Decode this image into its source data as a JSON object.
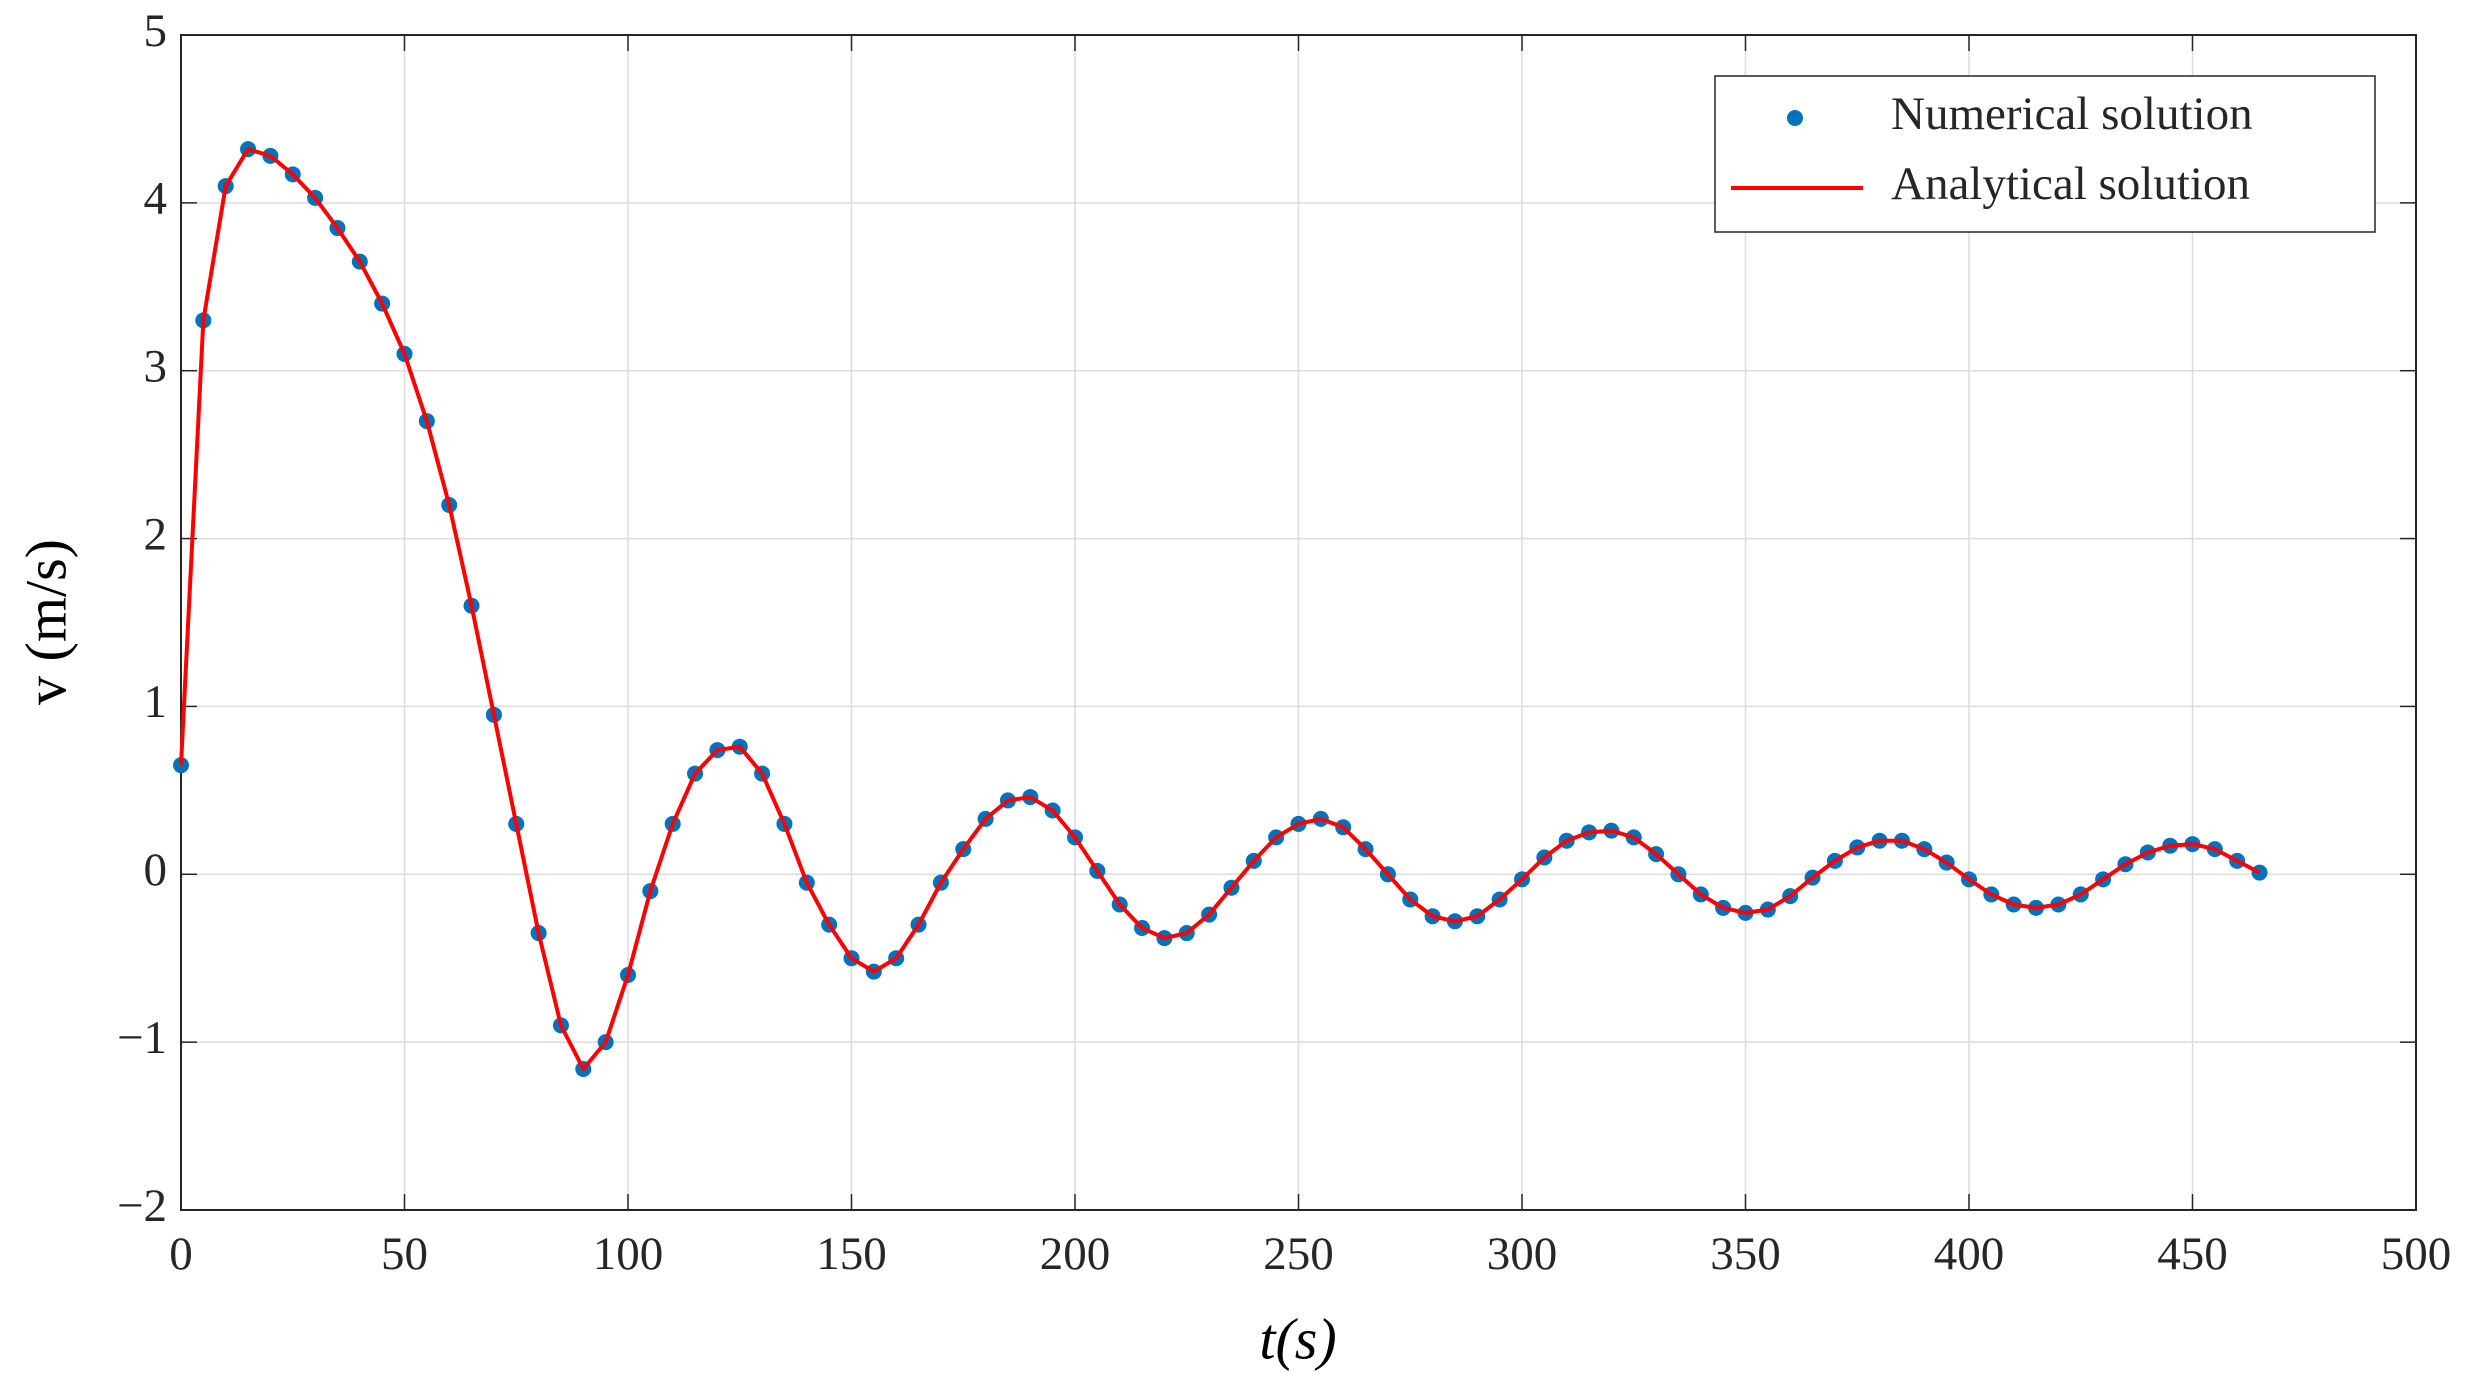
{
  "chart_data": {
    "type": "line",
    "xlabel": "t(s)",
    "ylabel": "v (m/s)",
    "x": [
      0,
      5,
      10,
      15,
      20,
      25,
      30,
      35,
      40,
      45,
      50,
      55,
      60,
      65,
      70,
      75,
      80,
      85,
      90,
      95,
      100,
      105,
      110,
      115,
      120,
      125,
      130,
      135,
      140,
      145,
      150,
      155,
      160,
      165,
      170,
      175,
      180,
      185,
      190,
      195,
      200,
      205,
      210,
      215,
      220,
      225,
      230,
      235,
      240,
      245,
      250,
      255,
      260,
      265,
      270,
      275,
      280,
      285,
      290,
      295,
      300,
      305,
      310,
      315,
      320,
      325,
      330,
      335,
      340,
      345,
      350,
      355,
      360,
      365,
      370,
      375,
      380,
      385,
      390,
      395,
      400,
      405,
      410,
      415,
      420,
      425,
      430,
      435,
      440,
      445,
      450,
      455,
      460,
      465
    ],
    "series": [
      {
        "name": "Numerical solution",
        "style": "markers",
        "color": "#0072bd",
        "values": [
          0.65,
          3.3,
          4.1,
          4.32,
          4.28,
          4.17,
          4.03,
          3.85,
          3.65,
          3.4,
          3.1,
          2.7,
          2.2,
          1.6,
          0.95,
          0.3,
          -0.35,
          -0.9,
          -1.16,
          -1.0,
          -0.6,
          -0.1,
          0.3,
          0.6,
          0.74,
          0.76,
          0.6,
          0.3,
          -0.05,
          -0.3,
          -0.5,
          -0.58,
          -0.5,
          -0.3,
          -0.05,
          0.15,
          0.33,
          0.44,
          0.46,
          0.38,
          0.22,
          0.02,
          -0.18,
          -0.32,
          -0.38,
          -0.35,
          -0.24,
          -0.08,
          0.08,
          0.22,
          0.3,
          0.33,
          0.28,
          0.15,
          0.0,
          -0.15,
          -0.25,
          -0.28,
          -0.25,
          -0.15,
          -0.03,
          0.1,
          0.2,
          0.25,
          0.26,
          0.22,
          0.12,
          0.0,
          -0.12,
          -0.2,
          -0.23,
          -0.21,
          -0.13,
          -0.02,
          0.08,
          0.16,
          0.2,
          0.2,
          0.15,
          0.07,
          -0.03,
          -0.12,
          -0.18,
          -0.2,
          -0.18,
          -0.12,
          -0.03,
          0.06,
          0.13,
          0.17,
          0.18,
          0.15,
          0.08,
          0.01
        ]
      },
      {
        "name": "Analytical solution",
        "style": "line",
        "color": "#ff0000",
        "values": [
          0.65,
          3.3,
          4.1,
          4.32,
          4.28,
          4.17,
          4.03,
          3.85,
          3.65,
          3.4,
          3.1,
          2.7,
          2.2,
          1.6,
          0.95,
          0.3,
          -0.35,
          -0.9,
          -1.16,
          -1.0,
          -0.6,
          -0.1,
          0.3,
          0.6,
          0.74,
          0.76,
          0.6,
          0.3,
          -0.05,
          -0.3,
          -0.5,
          -0.58,
          -0.5,
          -0.3,
          -0.05,
          0.15,
          0.33,
          0.44,
          0.46,
          0.38,
          0.22,
          0.02,
          -0.18,
          -0.32,
          -0.38,
          -0.35,
          -0.24,
          -0.08,
          0.08,
          0.22,
          0.3,
          0.33,
          0.28,
          0.15,
          0.0,
          -0.15,
          -0.25,
          -0.28,
          -0.25,
          -0.15,
          -0.03,
          0.1,
          0.2,
          0.25,
          0.26,
          0.22,
          0.12,
          0.0,
          -0.12,
          -0.2,
          -0.23,
          -0.21,
          -0.13,
          -0.02,
          0.08,
          0.16,
          0.2,
          0.2,
          0.15,
          0.07,
          -0.03,
          -0.12,
          -0.18,
          -0.2,
          -0.18,
          -0.12,
          -0.03,
          0.06,
          0.13,
          0.17,
          0.18,
          0.15,
          0.08,
          0.01
        ]
      }
    ],
    "xlim": [
      0,
      500
    ],
    "xticks": [
      0,
      50,
      100,
      150,
      200,
      250,
      300,
      350,
      400,
      450,
      500
    ],
    "ylim": [
      -2,
      5
    ],
    "yticks": [
      -2,
      -1,
      0,
      1,
      2,
      3,
      4,
      5
    ],
    "grid": true,
    "legend": "upper right"
  }
}
